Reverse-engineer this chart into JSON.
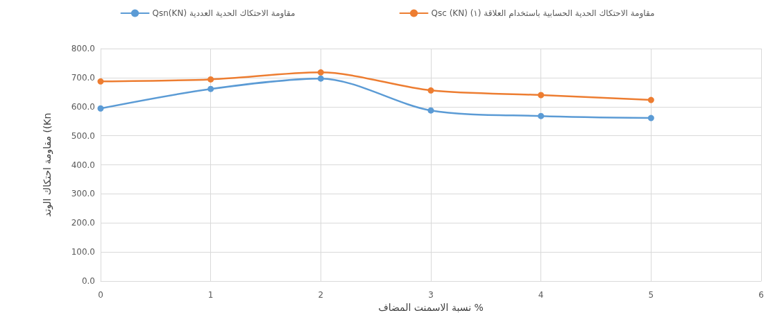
{
  "chart_data": {
    "type": "line",
    "xlabel": "نسبة الاسمنت المضاف %",
    "ylabel": "مقاومة احتكاك الوتد ((Kn",
    "x": [
      0,
      1,
      2,
      3,
      4,
      5
    ],
    "series": [
      {
        "name": "Qsn(KN) مقاومة الاحتكاك الحدية العددية",
        "color": "#5b9bd5",
        "values": [
          594,
          661,
          697,
          587,
          568,
          561
        ]
      },
      {
        "name": "Qsc (KN) (١) مقاومة الاحتكاك الحدية الحسابية باستخدام العلاقة",
        "color": "#ed7d31",
        "values": [
          687,
          694,
          718,
          656,
          640,
          623
        ]
      }
    ],
    "xlim": [
      0,
      6
    ],
    "xticks": [
      0,
      1,
      2,
      3,
      4,
      5,
      6
    ],
    "ylim": [
      0,
      800
    ],
    "yticks": [
      {
        "value": 0,
        "label": "0.0"
      },
      {
        "value": 100,
        "label": "100.0"
      },
      {
        "value": 200,
        "label": "200.0"
      },
      {
        "value": 300,
        "label": "300.0"
      },
      {
        "value": 400,
        "label": "400.0"
      },
      {
        "value": 500,
        "label": "500.0"
      },
      {
        "value": 600,
        "label": "600.0"
      },
      {
        "value": 700,
        "label": "700.0"
      },
      {
        "value": 800,
        "label": "800.0"
      }
    ],
    "grid": true,
    "legend": "top",
    "marker": "circle",
    "line_style": "solid"
  }
}
